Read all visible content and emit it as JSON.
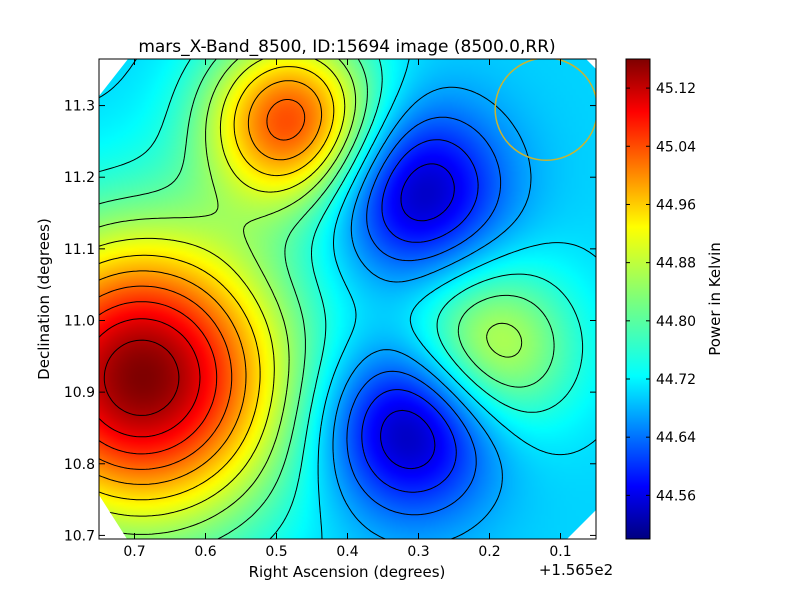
{
  "chart_data": {
    "type": "heatmap",
    "title": "mars_X-Band_8500, ID:15694 image (8500.0,RR)",
    "xlabel": "Right Ascension (degrees)",
    "ylabel": "Declination (degrees)",
    "x_offset_text": "+1.565e2",
    "xlim": [
      0.75,
      0.05
    ],
    "ylim": [
      10.695,
      11.365
    ],
    "x_ticks": [
      0.7,
      0.6,
      0.5,
      0.4,
      0.3,
      0.2,
      0.1
    ],
    "x_tick_labels": [
      "0.7",
      "0.6",
      "0.5",
      "0.4",
      "0.3",
      "0.2",
      "0.1"
    ],
    "y_ticks": [
      10.7,
      10.8,
      10.9,
      11.0,
      11.1,
      11.2,
      11.3
    ],
    "y_tick_labels": [
      "10.7",
      "10.8",
      "10.9",
      "11.0",
      "11.1",
      "11.2",
      "11.3"
    ],
    "colorbar": {
      "label": "Power in Kelvin",
      "range": [
        44.5,
        45.16
      ],
      "ticks": [
        44.56,
        44.64,
        44.72,
        44.8,
        44.88,
        44.96,
        45.04,
        45.12
      ],
      "tick_labels": [
        "44.56",
        "44.64",
        "44.72",
        "44.80",
        "44.88",
        "44.96",
        "45.04",
        "45.12"
      ],
      "colormap": "jet"
    },
    "field_extrema": [
      {
        "kind": "max",
        "ra": 0.69,
        "dec": 10.92,
        "value": 45.16
      },
      {
        "kind": "max",
        "ra": 0.48,
        "dec": 11.28,
        "value": 45.03
      },
      {
        "kind": "max",
        "ra": 0.2,
        "dec": 10.96,
        "value": 44.89
      },
      {
        "kind": "min",
        "ra": 0.3,
        "dec": 11.18,
        "value": 44.53
      },
      {
        "kind": "min",
        "ra": 0.31,
        "dec": 10.85,
        "value": 44.51
      }
    ],
    "contour_levels": [
      44.53,
      44.57,
      44.61,
      44.65,
      44.69,
      44.73,
      44.77,
      44.81,
      44.85,
      44.89,
      44.93,
      44.97,
      45.01,
      45.05,
      45.09,
      45.13
    ],
    "circle_marker": {
      "ra": 0.12,
      "dec": 11.295,
      "radius_deg": 0.06,
      "color": "#c8b432"
    },
    "grid": false
  }
}
